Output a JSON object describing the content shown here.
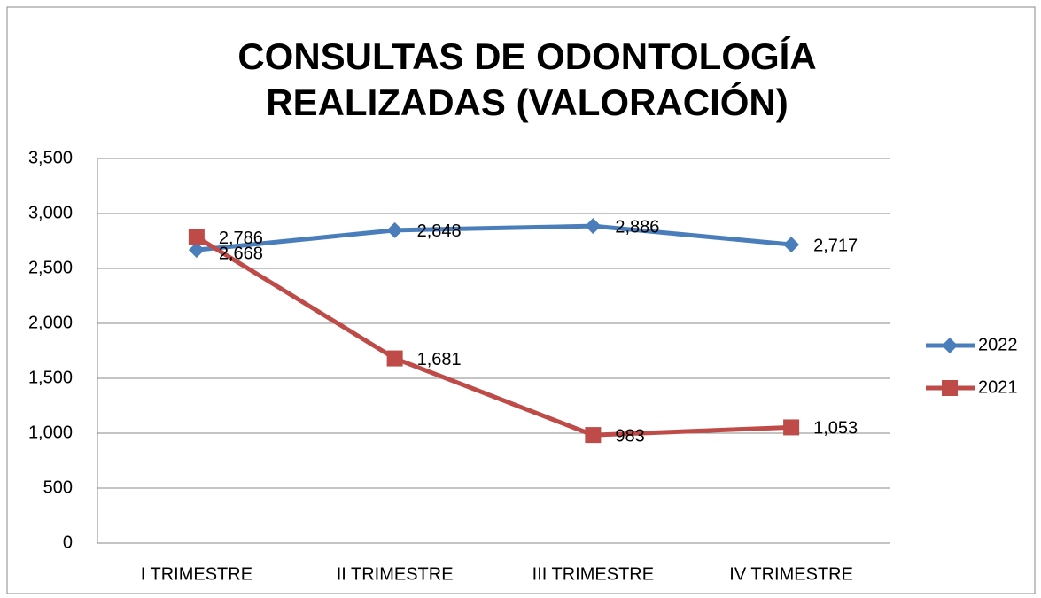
{
  "chart_data": {
    "type": "line",
    "title": "CONSULTAS DE ODONTOLOGÍA REALIZADAS (VALORACIÓN)",
    "categories": [
      "I TRIMESTRE",
      "II TRIMESTRE",
      "III TRIMESTRE",
      "IV TRIMESTRE"
    ],
    "series": [
      {
        "name": "2022",
        "color": "#4a7ebb",
        "marker": "diamond",
        "values": [
          2668,
          2848,
          2886,
          2717
        ],
        "value_labels": [
          "2,668",
          "2,848",
          "2,886",
          "2,717"
        ]
      },
      {
        "name": "2021",
        "color": "#be4b48",
        "marker": "square",
        "values": [
          2786,
          1681,
          983,
          1053
        ],
        "value_labels": [
          "2,786",
          "1,681",
          "983",
          "1,053"
        ]
      }
    ],
    "ylim": [
      0,
      3500
    ],
    "yticks": [
      0,
      500,
      {
        "value": 1000,
        "label": "1,000"
      },
      {
        "value": 1500,
        "label": "1,500"
      },
      {
        "value": 2000,
        "label": "2,000"
      },
      {
        "value": 2500,
        "label": "2,500"
      },
      {
        "value": 3000,
        "label": "3,000"
      },
      {
        "value": 3500,
        "label": "3,500"
      }
    ],
    "grid": true,
    "legend": "right"
  }
}
